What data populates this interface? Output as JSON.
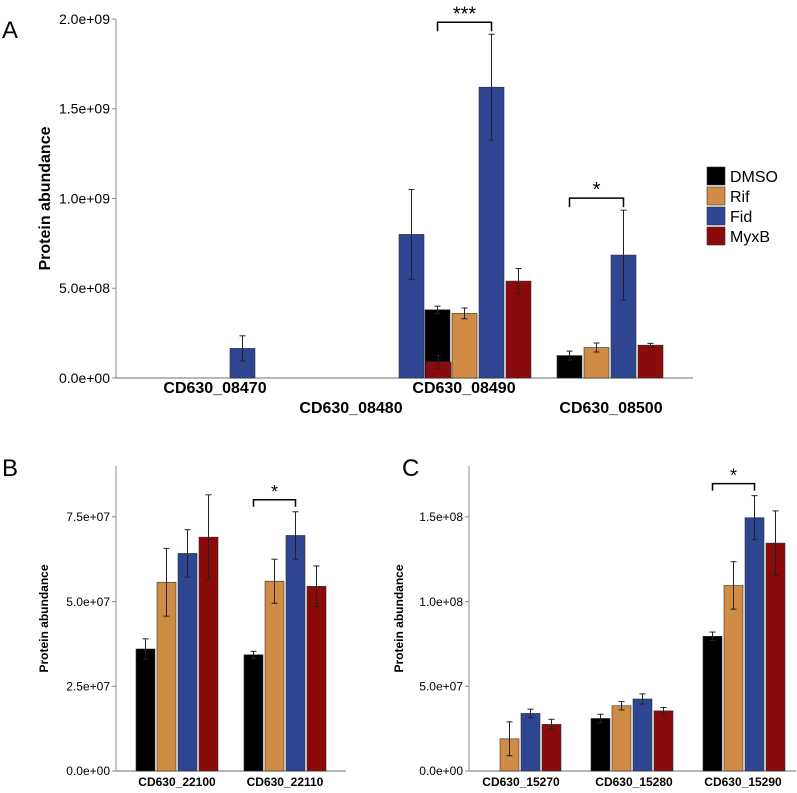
{
  "colors": {
    "DMSO": "#000000",
    "Rif": "#D08B45",
    "Fid": "#2E4591",
    "MyxB": "#8B0A0A"
  },
  "legend": [
    "DMSO",
    "Rif",
    "Fid",
    "MyxB"
  ],
  "chart_data": [
    {
      "panel": "A",
      "type": "bar",
      "ylabel": "Protein abundance",
      "ylim": [
        0,
        2000000000
      ],
      "yticks": [
        0,
        500000000,
        1000000000,
        1500000000,
        2000000000
      ],
      "ytick_labels": [
        "0.0e+00",
        "5.0e+08",
        "1.0e+09",
        "1.5e+09",
        "2.0e+09"
      ],
      "categories": [
        "CD630_08470",
        "CD630_08480",
        "CD630_08490",
        "CD630_08500"
      ],
      "series": [
        {
          "name": "DMSO",
          "values": [
            null,
            null,
            380000000,
            125000000
          ],
          "errors": [
            null,
            null,
            20000000,
            25000000
          ]
        },
        {
          "name": "Rif",
          "values": [
            null,
            null,
            360000000,
            170000000
          ],
          "errors": [
            null,
            null,
            30000000,
            25000000
          ]
        },
        {
          "name": "Fid",
          "values": [
            165000000,
            800000000,
            1620000000,
            685000000
          ],
          "errors": [
            70000000,
            250000000,
            295000000,
            250000000
          ]
        },
        {
          "name": "MyxB",
          "values": [
            null,
            90000000,
            540000000,
            183000000
          ],
          "errors": [
            null,
            35000000,
            70000000,
            10000000
          ]
        }
      ],
      "significance": [
        {
          "category": 2,
          "from": "DMSO",
          "to": "Fid",
          "label": "***"
        },
        {
          "category": 3,
          "from": "DMSO",
          "to": "Fid",
          "label": "*"
        }
      ]
    },
    {
      "panel": "B",
      "type": "bar",
      "ylabel": "Protein abundance",
      "ylim": [
        0,
        90000000
      ],
      "yticks": [
        0,
        25000000,
        50000000,
        75000000
      ],
      "ytick_labels": [
        "0.0e+00",
        "2.5e+07",
        "5.0e+07",
        "7.5e+07"
      ],
      "categories": [
        "CD630_22100",
        "CD630_22110"
      ],
      "series": [
        {
          "name": "DMSO",
          "values": [
            36000000,
            34300000
          ],
          "errors": [
            3000000,
            1000000
          ]
        },
        {
          "name": "Rif",
          "values": [
            55700000,
            56000000
          ],
          "errors": [
            10000000,
            6500000
          ]
        },
        {
          "name": "Fid",
          "values": [
            64200000,
            69500000
          ],
          "errors": [
            7000000,
            7000000
          ]
        },
        {
          "name": "MyxB",
          "values": [
            69000000,
            54500000
          ],
          "errors": [
            12500000,
            6000000
          ]
        }
      ],
      "significance": [
        {
          "category": 1,
          "from": "DMSO",
          "to": "Fid",
          "label": "*"
        }
      ]
    },
    {
      "panel": "C",
      "type": "bar",
      "ylabel": "Protein abundance",
      "ylim": [
        0,
        180000000
      ],
      "yticks": [
        0,
        50000000,
        100000000,
        150000000
      ],
      "ytick_labels": [
        "0.0e+00",
        "5.0e+07",
        "1.0e+08",
        "1.5e+08"
      ],
      "categories": [
        "CD630_15270",
        "CD630_15280",
        "CD630_15290"
      ],
      "series": [
        {
          "name": "DMSO",
          "values": [
            null,
            31000000,
            79500000
          ],
          "errors": [
            null,
            2500000,
            2500000
          ]
        },
        {
          "name": "Rif",
          "values": [
            19000000,
            38500000,
            109500000
          ],
          "errors": [
            10000000,
            2500000,
            14000000
          ]
        },
        {
          "name": "Fid",
          "values": [
            34000000,
            42500000,
            149500000
          ],
          "errors": [
            2500000,
            3000000,
            13000000
          ]
        },
        {
          "name": "MyxB",
          "values": [
            27500000,
            35500000,
            134500000
          ],
          "errors": [
            3000000,
            2000000,
            19000000
          ]
        }
      ],
      "significance": [
        {
          "category": 2,
          "from": "DMSO",
          "to": "Fid",
          "label": "*"
        }
      ]
    }
  ]
}
